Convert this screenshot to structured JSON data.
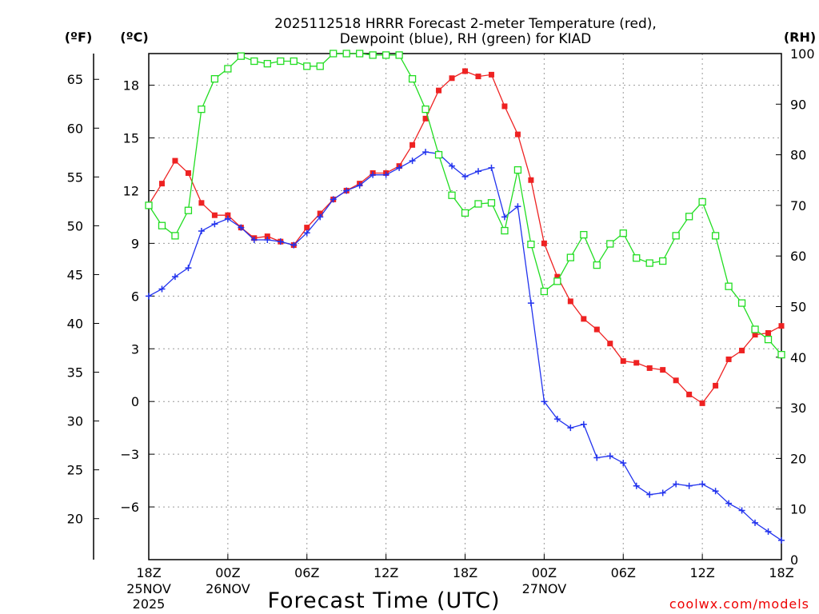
{
  "chart_data": {
    "type": "line",
    "title_line1": "2025112518 HRRR Forecast 2-meter Temperature (red),",
    "title_line2": "Dewpoint (blue), RH (green) for KIAD",
    "xlabel": "Forecast Time (UTC)",
    "credit": "coolwx.com/models",
    "units": {
      "fahrenheit": "(ºF)",
      "celsius": "(ºC)",
      "rh": "(RH)"
    },
    "x_range_hours": [
      0,
      48
    ],
    "x_ticks": [
      {
        "hour": 0,
        "label": "18Z",
        "date": "25NOV",
        "year": "2025"
      },
      {
        "hour": 6,
        "label": "00Z",
        "date": "26NOV",
        "year": ""
      },
      {
        "hour": 12,
        "label": "06Z",
        "date": "",
        "year": ""
      },
      {
        "hour": 18,
        "label": "12Z",
        "date": "",
        "year": ""
      },
      {
        "hour": 24,
        "label": "18Z",
        "date": "",
        "year": ""
      },
      {
        "hour": 30,
        "label": "00Z",
        "date": "27NOV",
        "year": ""
      },
      {
        "hour": 36,
        "label": "06Z",
        "date": "",
        "year": ""
      },
      {
        "hour": 42,
        "label": "12Z",
        "date": "",
        "year": ""
      },
      {
        "hour": 48,
        "label": "18Z",
        "date": "",
        "year": ""
      }
    ],
    "y_celsius": {
      "range": [
        -9,
        19.8
      ],
      "ticks": [
        18,
        15,
        12,
        9,
        6,
        3,
        0,
        -3,
        -6
      ]
    },
    "y_fahrenheit": {
      "ticks": [
        65,
        60,
        55,
        50,
        45,
        40,
        35,
        30,
        25,
        20
      ]
    },
    "y_rh": {
      "range": [
        0,
        100
      ],
      "ticks": [
        100,
        90,
        80,
        70,
        60,
        50,
        40,
        30,
        20,
        10,
        0
      ]
    },
    "hours": [
      0,
      1,
      2,
      3,
      4,
      5,
      6,
      7,
      8,
      9,
      10,
      11,
      12,
      13,
      14,
      15,
      16,
      17,
      18,
      19,
      20,
      21,
      22,
      23,
      24,
      25,
      26,
      27,
      28,
      29,
      30,
      31,
      32,
      33,
      34,
      35,
      36,
      37,
      38,
      39,
      40,
      41,
      42,
      43,
      44,
      45,
      46,
      47,
      48
    ],
    "series": [
      {
        "name": "Temperature",
        "unit": "C",
        "color": "#ee2222",
        "marker": "filled-square",
        "values": [
          11.2,
          12.4,
          13.7,
          13.0,
          11.3,
          10.6,
          10.6,
          9.9,
          9.3,
          9.4,
          9.1,
          8.9,
          9.9,
          10.7,
          11.5,
          12.0,
          12.4,
          13.0,
          13.0,
          13.4,
          14.6,
          16.1,
          17.7,
          18.4,
          18.8,
          18.5,
          18.6,
          16.8,
          15.2,
          12.6,
          9.0,
          7.1,
          5.7,
          4.7,
          4.1,
          3.3,
          2.3,
          2.2,
          1.9,
          1.8,
          1.2,
          0.4,
          -0.1,
          0.9,
          2.4,
          2.9,
          3.8,
          3.9,
          4.3
        ]
      },
      {
        "name": "Dewpoint",
        "unit": "C",
        "color": "#2233ee",
        "marker": "plus",
        "values": [
          6.0,
          6.4,
          7.1,
          7.6,
          9.7,
          10.1,
          10.4,
          9.9,
          9.2,
          9.2,
          9.1,
          8.9,
          9.6,
          10.5,
          11.5,
          12.0,
          12.3,
          12.9,
          12.9,
          13.3,
          13.7,
          14.2,
          14.1,
          13.4,
          12.8,
          13.1,
          13.3,
          10.5,
          11.1,
          5.6,
          0.0,
          -1.0,
          -1.5,
          -1.3,
          -3.2,
          -3.1,
          -3.5,
          -4.8,
          -5.3,
          -5.2,
          -4.7,
          -4.8,
          -4.7,
          -5.1,
          -5.8,
          -6.2,
          -6.9,
          -7.4,
          -7.9
        ]
      },
      {
        "name": "Relative Humidity",
        "unit": "%",
        "color": "#22dd22",
        "marker": "open-square",
        "values": [
          70,
          66,
          64,
          69,
          89,
          95,
          97,
          99.5,
          98.5,
          98,
          98.5,
          98.5,
          97.5,
          97.5,
          100,
          100,
          100,
          99.7,
          99.7,
          99.7,
          95,
          89,
          80,
          72,
          68.5,
          70.3,
          70.5,
          65,
          77,
          62.3,
          53,
          55,
          59.7,
          64.2,
          58.2,
          62.4,
          64.5,
          59.6,
          58.6,
          59,
          64,
          67.8,
          70.7,
          64,
          54,
          50.7,
          45.5,
          43.5,
          40.5
        ]
      }
    ]
  }
}
